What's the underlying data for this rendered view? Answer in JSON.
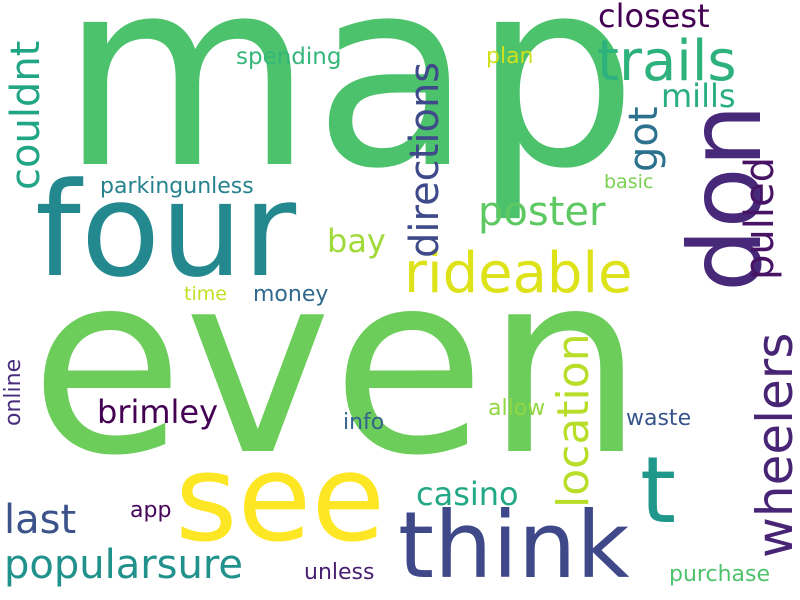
{
  "wordcloud": {
    "words": [
      {
        "text": "map",
        "color": "#4cc26c"
      },
      {
        "text": "even",
        "color": "#6ccd5a"
      },
      {
        "text": "four",
        "color": "#23898e"
      },
      {
        "text": "see",
        "color": "#fde725"
      },
      {
        "text": "think",
        "color": "#3f4889"
      },
      {
        "text": "don",
        "color": "#482979"
      },
      {
        "text": "t",
        "color": "#1f988b"
      },
      {
        "text": "trails",
        "color": "#2db27d"
      },
      {
        "text": "rideable",
        "color": "#dde318"
      },
      {
        "text": "wheelers",
        "color": "#482475"
      },
      {
        "text": "directions",
        "color": "#3e4a89"
      },
      {
        "text": "location",
        "color": "#b8de29"
      },
      {
        "text": "pulled",
        "color": "#471365"
      },
      {
        "text": "poster",
        "color": "#5ec962"
      },
      {
        "text": "couldnt",
        "color": "#21a685"
      },
      {
        "text": "popularsure",
        "color": "#21918c"
      },
      {
        "text": "last",
        "color": "#3b528b"
      },
      {
        "text": "brimley",
        "color": "#440154"
      },
      {
        "text": "casino",
        "color": "#22a884"
      },
      {
        "text": "closest",
        "color": "#440154"
      },
      {
        "text": "mills",
        "color": "#29af7f"
      },
      {
        "text": "got",
        "color": "#2c728e"
      },
      {
        "text": "bay",
        "color": "#a0da39"
      },
      {
        "text": "parkingunless",
        "color": "#26828e"
      },
      {
        "text": "spending",
        "color": "#35b779"
      },
      {
        "text": "plan",
        "color": "#d0e11c"
      },
      {
        "text": "basic",
        "color": "#7ad151"
      },
      {
        "text": "time",
        "color": "#c2df23"
      },
      {
        "text": "money",
        "color": "#31688e"
      },
      {
        "text": "info",
        "color": "#33638d"
      },
      {
        "text": "allow",
        "color": "#90d743"
      },
      {
        "text": "waste",
        "color": "#39568c"
      },
      {
        "text": "online",
        "color": "#472d7b"
      },
      {
        "text": "app",
        "color": "#450559"
      },
      {
        "text": "unless",
        "color": "#481f70"
      },
      {
        "text": "purchase",
        "color": "#4ec36b"
      }
    ]
  }
}
